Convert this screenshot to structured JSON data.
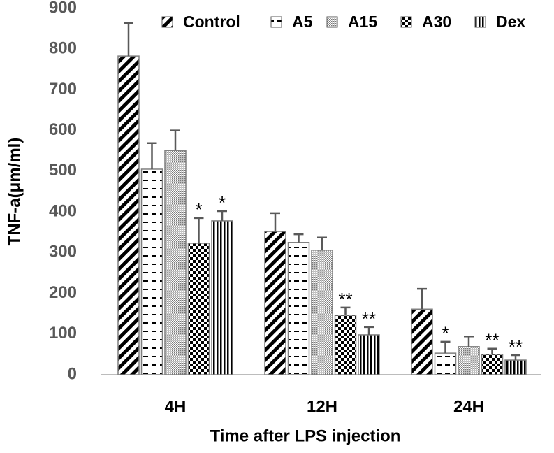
{
  "chart_data": {
    "type": "bar",
    "y_label": "TNF-a(μm/ml)",
    "x_label": "Time after LPS injection",
    "categories": [
      "4H",
      "12H",
      "24H"
    ],
    "ylim": [
      0,
      900
    ],
    "yticks": [
      0,
      100,
      200,
      300,
      400,
      500,
      600,
      700,
      800,
      900
    ],
    "grid": false,
    "legend": "top",
    "series": [
      {
        "name": "Control",
        "pattern": "diagonal",
        "values": [
          783,
          352,
          161
        ],
        "errors": [
          81,
          45,
          50
        ],
        "annotations": [
          null,
          null,
          null
        ]
      },
      {
        "name": "A5",
        "pattern": "dashes",
        "values": [
          505,
          325,
          53
        ],
        "errors": [
          64,
          20,
          28
        ],
        "annotations": [
          null,
          null,
          "*"
        ]
      },
      {
        "name": "A15",
        "pattern": "dots",
        "values": [
          551,
          306,
          69
        ],
        "errors": [
          49,
          31,
          25
        ],
        "annotations": [
          null,
          null,
          null
        ]
      },
      {
        "name": "A30",
        "pattern": "checker",
        "values": [
          323,
          146,
          50
        ],
        "errors": [
          62,
          19,
          14
        ],
        "annotations": [
          "*",
          "**",
          "**"
        ]
      },
      {
        "name": "Dex",
        "pattern": "vertical",
        "values": [
          378,
          98,
          36
        ],
        "errors": [
          24,
          19,
          12
        ],
        "annotations": [
          "*",
          "**",
          "**"
        ]
      }
    ]
  }
}
